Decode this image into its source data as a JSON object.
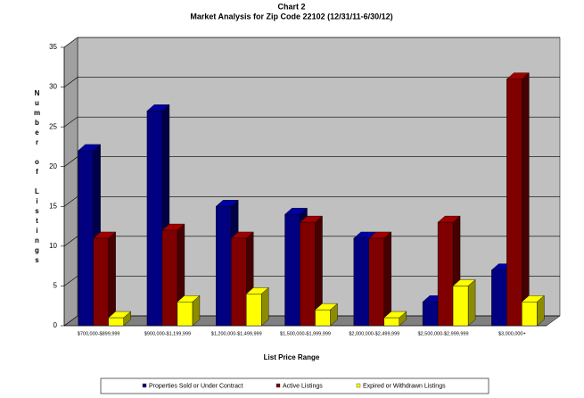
{
  "chart_data": {
    "type": "bar3d",
    "title": "Chart 2",
    "subtitle": "Market Analysis for Zip Code 22102 (12/31/11-6/30/12)",
    "y_label": "Number of Listings",
    "x_label": "List Price Range",
    "categories": [
      "$700,000-$899,999",
      "$900,000-$1,199,999",
      "$1,200,000-$1,499,999",
      "$1,500,000-$1,999,999",
      "$2,000,000-$2,499,999",
      "$2,500,000-$2,999,999",
      "$3,000,000+"
    ],
    "series": [
      {
        "name": "Properties Sold or Under Contract",
        "color": "#000080",
        "values": [
          22,
          27,
          15,
          14,
          11,
          3,
          7
        ]
      },
      {
        "name": "Active Listings",
        "color": "#800000",
        "values": [
          11,
          12,
          11,
          13,
          11,
          13,
          31
        ]
      },
      {
        "name": "Expired or Withdrawn Listings",
        "color": "#ffff00",
        "values": [
          1,
          3,
          4,
          2,
          1,
          5,
          3
        ]
      }
    ],
    "ylim": [
      0,
      35
    ],
    "yticks": [
      0,
      5,
      10,
      15,
      20,
      25,
      30,
      35
    ],
    "grid": true,
    "legend": "bottom"
  }
}
